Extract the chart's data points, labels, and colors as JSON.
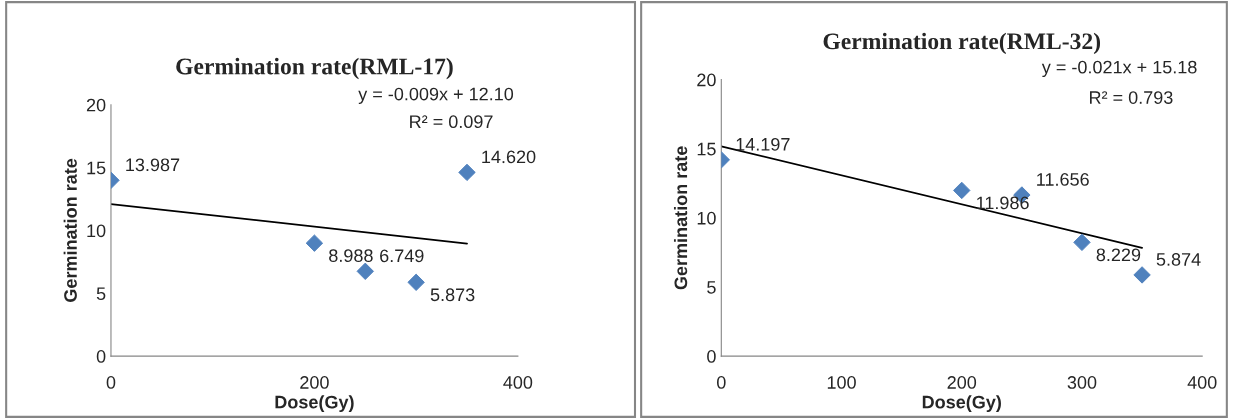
{
  "chart_data": [
    {
      "type": "scatter",
      "title": "Germination rate(RML-17)",
      "xlabel": "Dose(Gy)",
      "ylabel": "Germination rate",
      "xlim": [
        0,
        400
      ],
      "xticks": [
        0,
        200,
        400
      ],
      "ylim": [
        0,
        20
      ],
      "yticks": [
        0,
        5,
        10,
        15,
        20
      ],
      "grid": false,
      "legend": false,
      "series": [
        {
          "marker": "diamond",
          "color": "#4f81bd",
          "x": [
            0,
            200,
            250,
            300,
            350
          ],
          "values": [
            13.987,
            8.988,
            6.749,
            5.873,
            14.62
          ],
          "value_labels": [
            "13.987",
            "8.988",
            "6.749",
            "5.873",
            "14.620"
          ]
        },
        {
          "type": "line",
          "color": "#000000",
          "x": [
            0,
            350
          ],
          "values": [
            12.1,
            8.95
          ]
        }
      ],
      "annotations": [
        "y = -0.009x + 12.10",
        "R² = 0.097"
      ]
    },
    {
      "type": "scatter",
      "title": "Germination rate(RML-32)",
      "xlabel": "Dose(Gy)",
      "ylabel": "Germination rate",
      "xlim": [
        0,
        400
      ],
      "xticks": [
        0,
        100,
        200,
        300,
        400
      ],
      "ylim": [
        0,
        20
      ],
      "yticks": [
        0,
        5,
        10,
        15,
        20
      ],
      "grid": false,
      "legend": false,
      "series": [
        {
          "marker": "diamond",
          "color": "#4f81bd",
          "x": [
            0,
            200,
            250,
            300,
            350
          ],
          "values": [
            14.197,
            11.986,
            11.656,
            8.229,
            5.874
          ],
          "value_labels": [
            "14.197",
            "11.986",
            "11.656",
            "8.229",
            "5.874"
          ]
        },
        {
          "type": "line",
          "color": "#000000",
          "x": [
            0,
            350
          ],
          "values": [
            15.18,
            7.83
          ]
        }
      ],
      "annotations": [
        "y = -0.021x + 15.18",
        "R² = 0.793"
      ]
    }
  ]
}
